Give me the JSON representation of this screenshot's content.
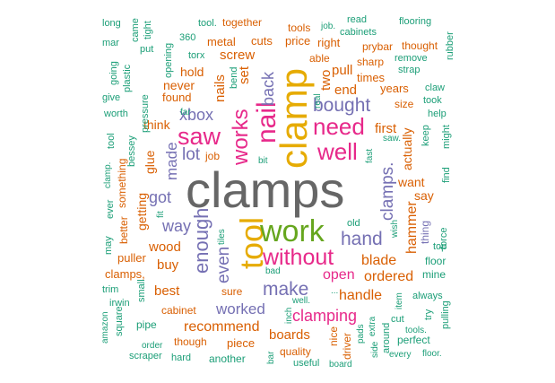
{
  "colors": {
    "background": "#ffffff",
    "gray": "#666666",
    "teal": "#1b9e77",
    "orange": "#d95f02",
    "purple": "#7570b3",
    "pink": "#e7298a",
    "green": "#66a61e",
    "gold": "#e6ab02"
  },
  "words": [
    {
      "text": "clamps",
      "color": "gray"
    },
    {
      "text": "clamp",
      "color": "gold"
    },
    {
      "text": "tool",
      "color": "gold"
    },
    {
      "text": "work",
      "color": "green"
    },
    {
      "text": "nail",
      "color": "pink"
    },
    {
      "text": "without",
      "color": "pink"
    },
    {
      "text": "saw",
      "color": "pink"
    },
    {
      "text": "need",
      "color": "pink"
    },
    {
      "text": "well",
      "color": "pink"
    },
    {
      "text": "works",
      "color": "pink"
    },
    {
      "text": "bought",
      "color": "purple"
    },
    {
      "text": "enough",
      "color": "purple"
    },
    {
      "text": "hand",
      "color": "purple"
    },
    {
      "text": "make",
      "color": "purple"
    },
    {
      "text": "clamping",
      "color": "pink"
    },
    {
      "text": "clamps.",
      "color": "purple"
    },
    {
      "text": "even",
      "color": "purple"
    },
    {
      "text": "lot",
      "color": "purple"
    },
    {
      "text": "got",
      "color": "purple"
    },
    {
      "text": "way",
      "color": "purple"
    },
    {
      "text": "xbox",
      "color": "purple"
    },
    {
      "text": "made",
      "color": "purple"
    },
    {
      "text": "back",
      "color": "purple"
    },
    {
      "text": "worked",
      "color": "purple"
    },
    {
      "text": "hammer",
      "color": "orange"
    },
    {
      "text": "blade",
      "color": "orange"
    },
    {
      "text": "ordered",
      "color": "orange"
    },
    {
      "text": "open",
      "color": "pink"
    },
    {
      "text": "handle",
      "color": "orange"
    },
    {
      "text": "recommend",
      "color": "orange"
    },
    {
      "text": "boards",
      "color": "orange"
    },
    {
      "text": "wood",
      "color": "orange"
    },
    {
      "text": "buy",
      "color": "orange"
    },
    {
      "text": "best",
      "color": "orange"
    },
    {
      "text": "first",
      "color": "orange"
    },
    {
      "text": "actually",
      "color": "orange"
    },
    {
      "text": "want",
      "color": "orange"
    },
    {
      "text": "say",
      "color": "orange"
    },
    {
      "text": "glue",
      "color": "orange"
    },
    {
      "text": "think",
      "color": "orange"
    },
    {
      "text": "getting",
      "color": "orange"
    },
    {
      "text": "set",
      "color": "orange"
    },
    {
      "text": "nails",
      "color": "orange"
    },
    {
      "text": "screw",
      "color": "orange"
    },
    {
      "text": "two",
      "color": "orange"
    },
    {
      "text": "end",
      "color": "orange"
    },
    {
      "text": "pull",
      "color": "orange"
    },
    {
      "text": "never",
      "color": "orange"
    },
    {
      "text": "hold",
      "color": "orange"
    },
    {
      "text": "found",
      "color": "orange"
    },
    {
      "text": "metal",
      "color": "orange"
    },
    {
      "text": "cuts",
      "color": "orange"
    },
    {
      "text": "price",
      "color": "orange"
    },
    {
      "text": "right",
      "color": "orange"
    },
    {
      "text": "years",
      "color": "orange"
    },
    {
      "text": "times",
      "color": "orange"
    },
    {
      "text": "clamps,",
      "color": "orange"
    },
    {
      "text": "puller",
      "color": "orange"
    },
    {
      "text": "cabinet",
      "color": "orange"
    },
    {
      "text": "though",
      "color": "orange"
    },
    {
      "text": "piece",
      "color": "orange"
    },
    {
      "text": "quality",
      "color": "orange"
    },
    {
      "text": "sure",
      "color": "orange"
    },
    {
      "text": "job",
      "color": "orange"
    },
    {
      "text": "tools",
      "color": "orange"
    },
    {
      "text": "together",
      "color": "orange"
    },
    {
      "text": "thing",
      "color": "purple"
    },
    {
      "text": "something",
      "color": "orange"
    },
    {
      "text": "better",
      "color": "orange"
    },
    {
      "text": "nice",
      "color": "orange"
    },
    {
      "text": "driver",
      "color": "orange"
    },
    {
      "text": "sharp",
      "color": "orange"
    },
    {
      "text": "prybar",
      "color": "orange"
    },
    {
      "text": "thought",
      "color": "orange"
    },
    {
      "text": "able",
      "color": "orange"
    },
    {
      "text": "size",
      "color": "orange"
    },
    {
      "text": "long",
      "color": "teal"
    },
    {
      "text": "came",
      "color": "teal"
    },
    {
      "text": "tight",
      "color": "teal"
    },
    {
      "text": "tool.",
      "color": "teal"
    },
    {
      "text": "job.",
      "color": "teal"
    },
    {
      "text": "read",
      "color": "teal"
    },
    {
      "text": "flooring",
      "color": "teal"
    },
    {
      "text": "mar",
      "color": "teal"
    },
    {
      "text": "put",
      "color": "teal"
    },
    {
      "text": "360",
      "color": "teal"
    },
    {
      "text": "cabinets",
      "color": "teal"
    },
    {
      "text": "rubber",
      "color": "teal"
    },
    {
      "text": "going",
      "color": "teal"
    },
    {
      "text": "plastic",
      "color": "teal"
    },
    {
      "text": "opening",
      "color": "teal"
    },
    {
      "text": "torx",
      "color": "teal"
    },
    {
      "text": "bend",
      "color": "teal"
    },
    {
      "text": "remove",
      "color": "teal"
    },
    {
      "text": "strap",
      "color": "teal"
    },
    {
      "text": "give",
      "color": "teal"
    },
    {
      "text": "pressure",
      "color": "teal"
    },
    {
      "text": "claw",
      "color": "teal"
    },
    {
      "text": "took",
      "color": "teal"
    },
    {
      "text": "far",
      "color": "teal"
    },
    {
      "text": "real",
      "color": "teal"
    },
    {
      "text": "worth",
      "color": "teal"
    },
    {
      "text": "help",
      "color": "teal"
    },
    {
      "text": "tool",
      "color": "teal"
    },
    {
      "text": "bessey",
      "color": "teal"
    },
    {
      "text": "keep",
      "color": "teal"
    },
    {
      "text": "might",
      "color": "teal"
    },
    {
      "text": "saw.",
      "color": "teal"
    },
    {
      "text": "fast",
      "color": "teal"
    },
    {
      "text": "clamp.",
      "color": "teal"
    },
    {
      "text": "bit",
      "color": "teal"
    },
    {
      "text": "find",
      "color": "teal"
    },
    {
      "text": "fit",
      "color": "teal"
    },
    {
      "text": "ever",
      "color": "teal"
    },
    {
      "text": "old",
      "color": "teal"
    },
    {
      "text": "wish",
      "color": "teal"
    },
    {
      "text": "tiles",
      "color": "teal"
    },
    {
      "text": "force",
      "color": "teal"
    },
    {
      "text": "may",
      "color": "teal"
    },
    {
      "text": "top",
      "color": "teal"
    },
    {
      "text": "floor",
      "color": "teal"
    },
    {
      "text": "mine",
      "color": "teal"
    },
    {
      "text": "small",
      "color": "teal"
    },
    {
      "text": "bad",
      "color": "teal"
    },
    {
      "text": "trim",
      "color": "teal"
    },
    {
      "text": "always",
      "color": "teal"
    },
    {
      "text": "irwin",
      "color": "teal"
    },
    {
      "text": "amazon",
      "color": "teal"
    },
    {
      "text": "square",
      "color": "teal"
    },
    {
      "text": "well.",
      "color": "teal"
    },
    {
      "text": "inch",
      "color": "teal"
    },
    {
      "text": "...",
      "color": "teal"
    },
    {
      "text": "item",
      "color": "teal"
    },
    {
      "text": "try",
      "color": "teal"
    },
    {
      "text": "extra",
      "color": "teal"
    },
    {
      "text": "cut",
      "color": "teal"
    },
    {
      "text": "pulling",
      "color": "teal"
    },
    {
      "text": "pipe",
      "color": "teal"
    },
    {
      "text": "pads",
      "color": "teal"
    },
    {
      "text": "tools.",
      "color": "teal"
    },
    {
      "text": "order",
      "color": "teal"
    },
    {
      "text": "around",
      "color": "teal"
    },
    {
      "text": "perfect",
      "color": "teal"
    },
    {
      "text": "scraper",
      "color": "teal"
    },
    {
      "text": "hard",
      "color": "teal"
    },
    {
      "text": "another",
      "color": "teal"
    },
    {
      "text": "bar",
      "color": "teal"
    },
    {
      "text": "useful",
      "color": "teal"
    },
    {
      "text": "board",
      "color": "teal"
    },
    {
      "text": "side",
      "color": "teal"
    },
    {
      "text": "every",
      "color": "teal"
    },
    {
      "text": "floor.",
      "color": "teal"
    }
  ]
}
